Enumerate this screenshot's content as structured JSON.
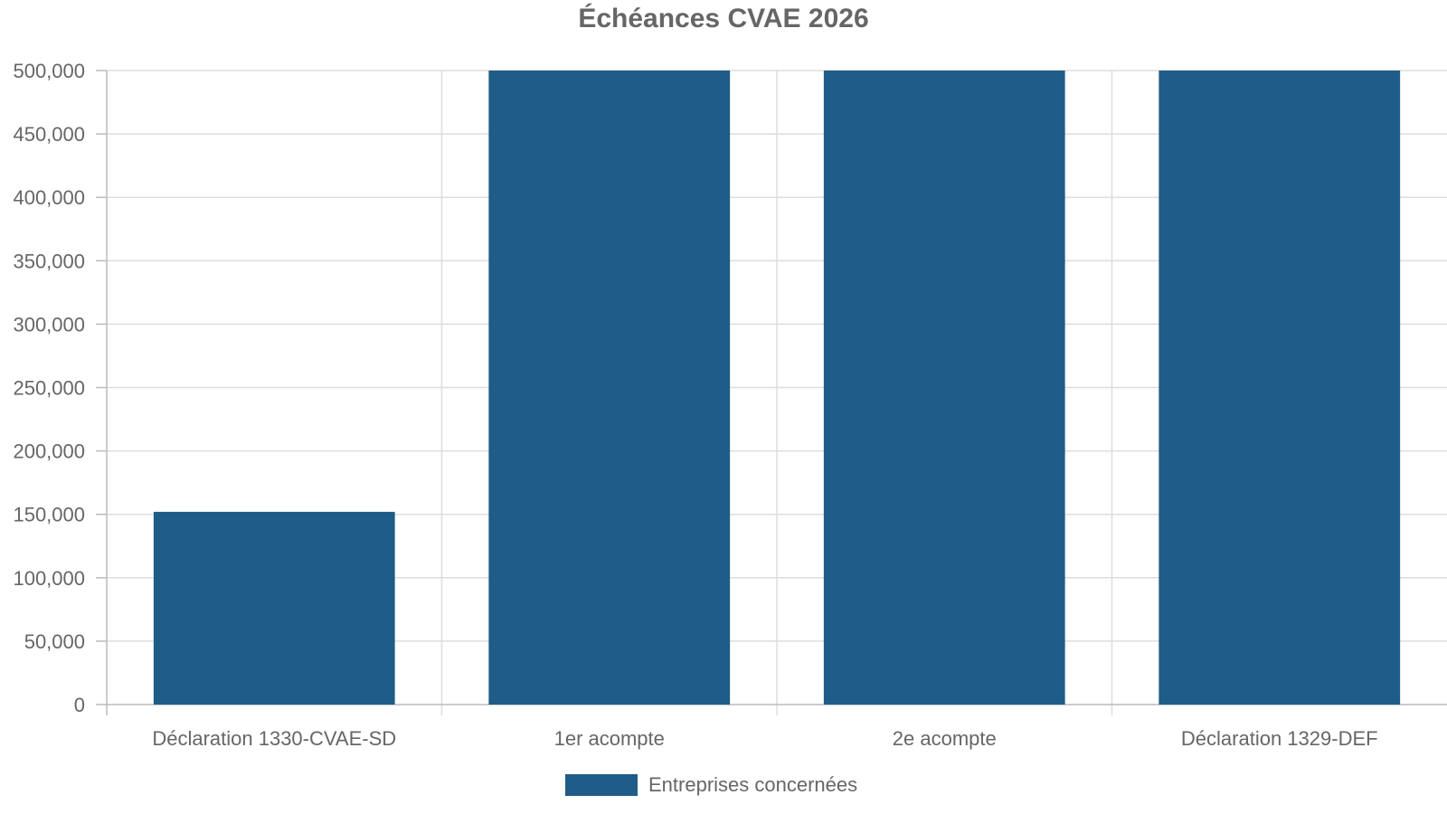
{
  "chart_data": {
    "type": "bar",
    "title": "Échéances CVAE 2026",
    "categories": [
      "Déclaration 1330-CVAE-SD",
      "1er acompte",
      "2e acompte",
      "Déclaration 1329-DEF"
    ],
    "series": [
      {
        "name": "Entreprises concernées",
        "values": [
          152000,
          500000,
          500000,
          500000
        ],
        "color": "#1f5c87"
      }
    ],
    "ylim": [
      0,
      500000
    ],
    "y_ticks": [
      0,
      50000,
      100000,
      150000,
      200000,
      250000,
      300000,
      350000,
      400000,
      450000,
      500000
    ],
    "y_tick_labels": [
      "0",
      "50,000",
      "100,000",
      "150,000",
      "200,000",
      "250,000",
      "300,000",
      "350,000",
      "400,000",
      "450,000",
      "500,000"
    ],
    "grid": true,
    "legend_position": "bottom-center",
    "colors": {
      "grid": "#dddddd",
      "axis": "#bbbbbb",
      "text": "#666666"
    }
  }
}
